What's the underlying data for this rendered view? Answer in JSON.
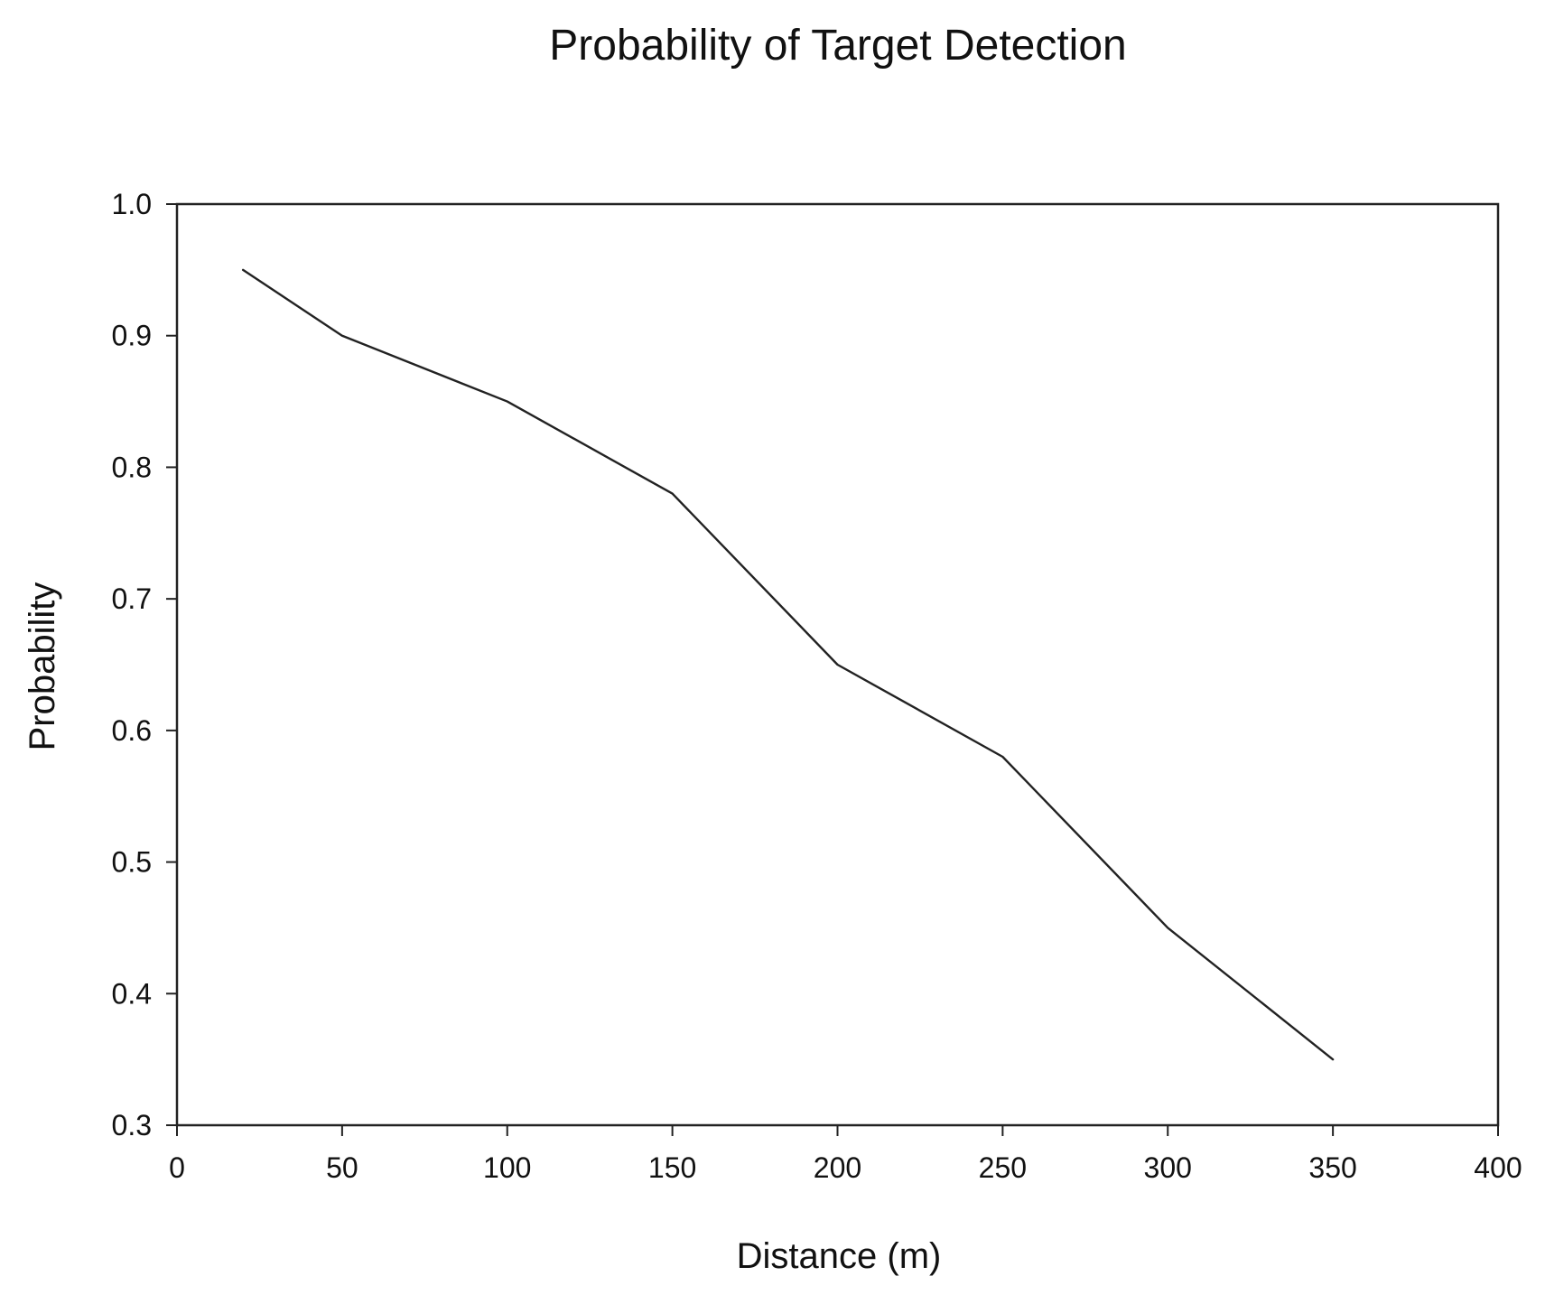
{
  "chart_data": {
    "type": "line",
    "title": "Probability of Target Detection",
    "xlabel": "Distance (m)",
    "ylabel": "Probability",
    "xlim": [
      0,
      400
    ],
    "ylim": [
      0.3,
      1.0
    ],
    "x_ticks": [
      0,
      50,
      100,
      150,
      200,
      250,
      300,
      350,
      400
    ],
    "x_tick_labels": [
      "0",
      "50",
      "100",
      "150",
      "200",
      "250",
      "300",
      "350",
      "400"
    ],
    "y_ticks": [
      0.3,
      0.4,
      0.5,
      0.6,
      0.7,
      0.8,
      0.9,
      1.0
    ],
    "y_tick_labels": [
      "0.3",
      "0.4",
      "0.5",
      "0.6",
      "0.7",
      "0.8",
      "0.9",
      "1.0"
    ],
    "grid": false,
    "legend": "none",
    "series": [
      {
        "x": [
          20,
          50,
          100,
          150,
          200,
          250,
          300,
          350
        ],
        "y": [
          0.95,
          0.9,
          0.85,
          0.78,
          0.65,
          0.58,
          0.45,
          0.35
        ],
        "color": "#222222"
      }
    ]
  }
}
